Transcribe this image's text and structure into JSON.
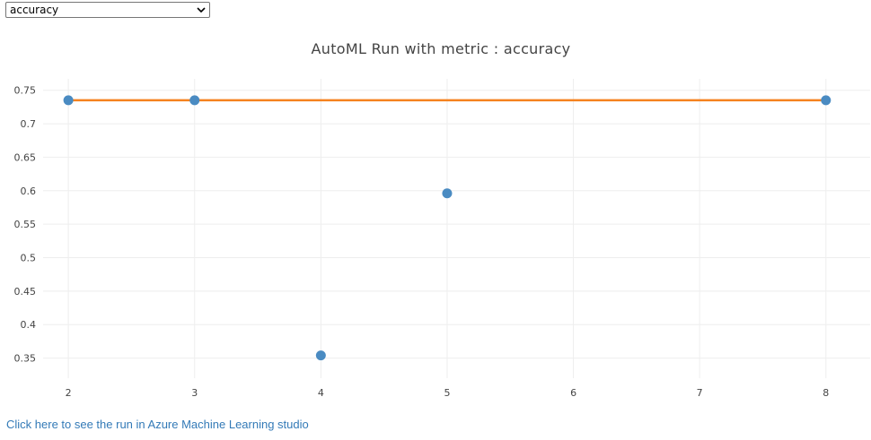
{
  "metric_select": {
    "selected": "accuracy"
  },
  "link": {
    "label": "Click here to see the run in Azure Machine Learning studio"
  },
  "colors": {
    "marker": "#4a8bc2",
    "best_line": "#f5821f",
    "grid": "#eeeeee",
    "link": "#337ab7"
  },
  "chart_data": {
    "type": "scatter",
    "title": "AutoML Run with metric : accuracy",
    "xlabel": "",
    "ylabel": "",
    "grid": true,
    "xlim": [
      1.8,
      8.35
    ],
    "ylim": [
      0.32,
      0.767
    ],
    "x_ticks": [
      2,
      3,
      4,
      5,
      6,
      7,
      8
    ],
    "y_ticks": [
      0.35,
      0.4,
      0.45,
      0.5,
      0.55,
      0.6,
      0.65,
      0.7,
      0.75
    ],
    "y_tick_labels": [
      "0.35",
      "0.4",
      "0.45",
      "0.5",
      "0.55",
      "0.6",
      "0.65",
      "0.7",
      "0.75"
    ],
    "series": [
      {
        "mode": "markers",
        "x": [
          2,
          3,
          4,
          5,
          8
        ],
        "y": [
          0.735,
          0.735,
          0.354,
          0.596,
          0.735
        ]
      },
      {
        "mode": "line",
        "x": [
          2,
          8
        ],
        "y": [
          0.735,
          0.735
        ]
      }
    ]
  }
}
